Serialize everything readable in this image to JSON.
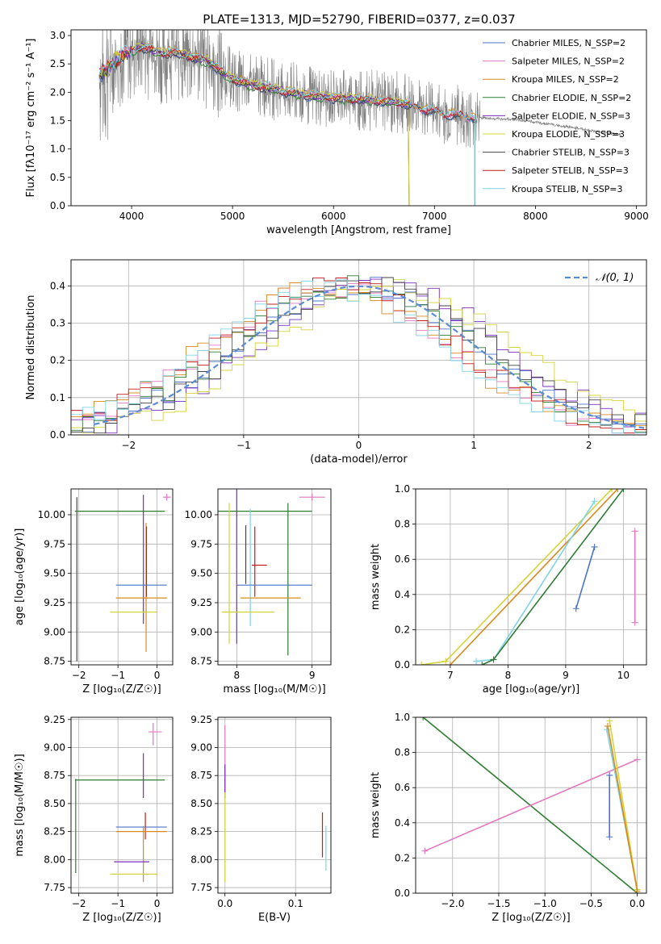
{
  "figure": {
    "title": "PLATE=1313, MJD=52790, FIBERID=0377, z=0.037"
  },
  "colors": {
    "models": [
      "#4c72c9",
      "#e377c2",
      "#d98a1e",
      "#2e7d32",
      "#7b2fbf",
      "#d4d43a",
      "#444444",
      "#c21d1d",
      "#7fd3e6"
    ],
    "spectrum": "#808080"
  },
  "chart_data": [
    {
      "id": "spectrum",
      "type": "line",
      "title": "PLATE=1313, MJD=52790, FIBERID=0377, z=0.037",
      "xlabel": "wavelength [Angstrom, rest frame]",
      "ylabel": "Flux [fλ10⁻¹⁷ erg cm⁻² s⁻¹ A⁻¹]",
      "xlim": [
        3400,
        9100
      ],
      "ylim": [
        0,
        3.1
      ],
      "xticks": [
        "4000",
        "5000",
        "6000",
        "7000",
        "8000",
        "9000"
      ],
      "yticks": [
        "0.0",
        "0.5",
        "1.0",
        "1.5",
        "2.0",
        "2.5",
        "3.0"
      ],
      "grid": false,
      "legend_position": "top-right",
      "legend": [
        "Chabrier MILES, N_SSP=2",
        "Salpeter MILES, N_SSP=2",
        "Kroupa MILES, N_SSP=2",
        "Chabrier ELODIE, N_SSP=2",
        "Salpeter ELODIE, N_SSP=3",
        "Kroupa ELODIE, N_SSP=3",
        "Chabrier STELIB, N_SSP=3",
        "Salpeter STELIB, N_SSP=3",
        "Kroupa STELIB, N_SSP=3"
      ],
      "continuum": {
        "x": [
          3680,
          3750,
          3800,
          3900,
          4000,
          4100,
          4200,
          4300,
          4400,
          4500,
          4600,
          4700,
          4800,
          4900,
          5000,
          5100,
          5200,
          5300,
          5400,
          5500,
          5600,
          5700,
          5800,
          5900,
          6000,
          6100,
          6200,
          6300,
          6400,
          6500,
          6600,
          6700,
          6800,
          6900,
          7000,
          7100,
          7200,
          7300,
          7400,
          7500,
          7600,
          7700,
          7800,
          7900,
          8000,
          8100,
          8200,
          8300,
          8400,
          8500,
          8600,
          8700,
          8800,
          8850
        ],
        "y": [
          2.32,
          2.4,
          2.5,
          2.65,
          2.73,
          2.8,
          2.75,
          2.68,
          2.72,
          2.66,
          2.62,
          2.58,
          2.5,
          2.35,
          2.23,
          2.18,
          2.12,
          2.1,
          2.06,
          2.02,
          1.99,
          1.96,
          1.94,
          1.92,
          1.9,
          1.89,
          1.88,
          1.87,
          1.86,
          1.84,
          1.83,
          1.8,
          1.75,
          1.7,
          1.66,
          1.62,
          1.6,
          1.58,
          1.56,
          1.55,
          1.53,
          1.53,
          1.52,
          1.5,
          1.47,
          1.45,
          1.42,
          1.4,
          1.37,
          1.34,
          1.31,
          1.28,
          1.26,
          1.25
        ]
      },
      "model_end_x": [
        7400,
        7400,
        7400,
        6750,
        6750,
        6750,
        7400,
        7400,
        7400
      ]
    },
    {
      "id": "residuals",
      "type": "line",
      "xlabel": "(data-model)/error",
      "ylabel": "Normed distribution",
      "xlim": [
        -2.5,
        2.5
      ],
      "ylim": [
        0,
        0.47
      ],
      "xticks": [
        "−2",
        "−1",
        "0",
        "1",
        "2"
      ],
      "yticks": [
        "0.0",
        "0.1",
        "0.2",
        "0.3",
        "0.4"
      ],
      "grid": true,
      "legend_position": "top-right",
      "legend": [
        "𝒩(0, 1)"
      ],
      "reference_curve": "normal(0,1)",
      "histogram_bins": {
        "start": -2.5,
        "width": 0.1,
        "count": 50
      }
    },
    {
      "id": "age-vs-Z",
      "type": "scatter",
      "xlabel": "Z [log₁₀(Z/Z☉)]",
      "ylabel": "age  [log₁₀(age/yr)]",
      "xlim": [
        -2.2,
        0.4
      ],
      "ylim": [
        8.72,
        10.22
      ],
      "xticks": [
        "−2",
        "−1",
        "0"
      ],
      "yticks": [
        "8.75",
        "9.00",
        "9.25",
        "9.50",
        "9.75",
        "10.00"
      ],
      "grid": true,
      "errorbars": [
        {
          "x": 0.25,
          "xerr": 0.1,
          "y": 10.15,
          "yerr": 0.03,
          "c": 1
        },
        {
          "x": -2.05,
          "xerr": 0.0,
          "y": 9.45,
          "yerr": 0.7,
          "c": 6
        },
        {
          "x": -0.95,
          "xerr": 1.15,
          "y": 10.03,
          "yerr": 0.0,
          "c": 3
        },
        {
          "x": -0.35,
          "xerr": 0.0,
          "y": 9.62,
          "yerr": 0.55,
          "c": 4
        },
        {
          "x": -0.28,
          "xerr": 0.0,
          "y": 9.38,
          "yerr": 0.55,
          "c": 2
        },
        {
          "x": -0.27,
          "xerr": 0.0,
          "y": 9.6,
          "yerr": 0.3,
          "c": 7
        },
        {
          "x": -0.2,
          "xerr": 0.0,
          "y": 9.57,
          "yerr": 0.0,
          "c": 8
        },
        {
          "x": -0.4,
          "xerr": 0.65,
          "y": 9.4,
          "yerr": 0.0,
          "c": 0
        },
        {
          "x": -0.4,
          "xerr": 0.65,
          "y": 9.29,
          "yerr": 0.0,
          "c": 2
        },
        {
          "x": -0.6,
          "xerr": 0.6,
          "y": 9.17,
          "yerr": 0.0,
          "c": 5
        }
      ]
    },
    {
      "id": "age-vs-mass",
      "type": "scatter",
      "xlabel": "mass [log₁₀(M/M☉)]",
      "ylabel": "",
      "xlim": [
        7.75,
        9.25
      ],
      "ylim": [
        8.72,
        10.22
      ],
      "xticks": [
        "8",
        "9"
      ],
      "yticks": [
        "8.75",
        "9.00",
        "9.25",
        "9.50",
        "9.75",
        "10.00"
      ],
      "grid": true,
      "errorbars": [
        {
          "x": 9.0,
          "xerr": 0.17,
          "y": 10.15,
          "yerr": 0.03,
          "c": 1
        },
        {
          "x": 8.35,
          "xerr": 0.65,
          "y": 10.03,
          "yerr": 0.0,
          "c": 3
        },
        {
          "x": 8.68,
          "xerr": 0.0,
          "y": 9.45,
          "yerr": 0.65,
          "c": 3
        },
        {
          "x": 8.0,
          "xerr": 0.0,
          "y": 9.6,
          "yerr": 0.7,
          "c": 4
        },
        {
          "x": 7.9,
          "xerr": 0.0,
          "y": 9.5,
          "yerr": 0.6,
          "c": 5
        },
        {
          "x": 8.12,
          "xerr": 0.0,
          "y": 9.66,
          "yerr": 0.25,
          "c": 6
        },
        {
          "x": 8.24,
          "xerr": 0.0,
          "y": 9.6,
          "yerr": 0.3,
          "c": 7
        },
        {
          "x": 8.18,
          "xerr": 0.0,
          "y": 9.55,
          "yerr": 0.5,
          "c": 8
        },
        {
          "x": 8.5,
          "xerr": 0.5,
          "y": 9.4,
          "yerr": 0.0,
          "c": 0
        },
        {
          "x": 8.45,
          "xerr": 0.4,
          "y": 9.29,
          "yerr": 0.0,
          "c": 2
        },
        {
          "x": 8.15,
          "xerr": 0.35,
          "y": 9.17,
          "yerr": 0.0,
          "c": 5
        },
        {
          "x": 8.3,
          "xerr": 0.1,
          "y": 9.57,
          "yerr": 0.0,
          "c": 7
        }
      ]
    },
    {
      "id": "massweight-vs-age",
      "type": "line",
      "xlabel": "age  [log₁₀(age/yr)]",
      "ylabel": "mass weight",
      "xlim": [
        6.4,
        10.4
      ],
      "ylim": [
        0,
        1
      ],
      "xticks": [
        "7",
        "8",
        "9",
        "10"
      ],
      "yticks": [
        "0.0",
        "0.2",
        "0.4",
        "0.6",
        "0.8",
        "1.0"
      ],
      "grid": true,
      "series": [
        {
          "c": 0,
          "x": [
            9.18,
            9.5
          ],
          "y": [
            0.32,
            0.67
          ]
        },
        {
          "c": 1,
          "x": [
            10.2,
            10.2
          ],
          "y": [
            0.24,
            0.76
          ]
        },
        {
          "c": 2,
          "x": [
            7.0,
            9.9
          ],
          "y": [
            0.0,
            1.0
          ]
        },
        {
          "c": 5,
          "x": [
            6.5,
            6.92,
            9.8
          ],
          "y": [
            0.0,
            0.02,
            1.0
          ]
        },
        {
          "c": 8,
          "x": [
            7.45,
            7.75,
            9.5
          ],
          "y": [
            0.02,
            0.03,
            0.93
          ]
        },
        {
          "c": 3,
          "x": [
            7.55,
            7.75,
            10.0
          ],
          "y": [
            0.0,
            0.03,
            1.0
          ]
        }
      ]
    },
    {
      "id": "mass-vs-Z",
      "type": "scatter",
      "xlabel": "Z [log₁₀(Z/Z☉)]",
      "ylabel": "mass [log₁₀(M/M☉)]",
      "xlim": [
        -2.2,
        0.4
      ],
      "ylim": [
        7.7,
        9.27
      ],
      "xticks": [
        "−2",
        "−1",
        "0"
      ],
      "yticks": [
        "7.75",
        "8.00",
        "8.25",
        "8.50",
        "8.75",
        "9.00",
        "9.25"
      ],
      "grid": true,
      "errorbars": [
        {
          "x": -0.1,
          "xerr": 0.0,
          "y": 9.12,
          "yerr": 0.1,
          "c": 1
        },
        {
          "x": -0.05,
          "xerr": 0.17,
          "y": 9.14,
          "yerr": 0.0,
          "c": 1
        },
        {
          "x": -0.95,
          "xerr": 1.15,
          "y": 8.71,
          "yerr": 0.0,
          "c": 3
        },
        {
          "x": -2.08,
          "xerr": 0.0,
          "y": 8.3,
          "yerr": 0.42,
          "c": 3
        },
        {
          "x": -0.35,
          "xerr": 0.0,
          "y": 8.75,
          "yerr": 0.2,
          "c": 4
        },
        {
          "x": -0.3,
          "xerr": 0.0,
          "y": 8.3,
          "yerr": 0.12,
          "c": 7
        },
        {
          "x": -0.4,
          "xerr": 0.65,
          "y": 8.29,
          "yerr": 0.0,
          "c": 0
        },
        {
          "x": -0.4,
          "xerr": 0.65,
          "y": 8.25,
          "yerr": 0.0,
          "c": 2
        },
        {
          "x": -0.35,
          "xerr": 0.0,
          "y": 8.05,
          "yerr": 0.25,
          "c": 2
        },
        {
          "x": -0.2,
          "xerr": 0.0,
          "y": 8.12,
          "yerr": 0.0,
          "c": 6
        },
        {
          "x": -0.65,
          "xerr": 0.45,
          "y": 7.98,
          "yerr": 0.0,
          "c": 4
        },
        {
          "x": -0.6,
          "xerr": 0.6,
          "y": 7.87,
          "yerr": 0.0,
          "c": 5
        }
      ]
    },
    {
      "id": "mass-vs-EBV",
      "type": "scatter",
      "xlabel": "E(B-V)",
      "ylabel": "",
      "xlim": [
        -0.01,
        0.15
      ],
      "ylim": [
        7.7,
        9.27
      ],
      "xticks": [
        "0.0",
        "0.1"
      ],
      "yticks": [
        "7.75",
        "8.00",
        "8.25",
        "8.50",
        "8.75",
        "9.00",
        "9.25"
      ],
      "grid": true,
      "errorbars": [
        {
          "x": 0.0,
          "xerr": 0.0,
          "y": 8.9,
          "yerr": 0.3,
          "c": 1
        },
        {
          "x": 0.0,
          "xerr": 0.0,
          "y": 8.7,
          "yerr": 0.15,
          "c": 4
        },
        {
          "x": 0.0,
          "xerr": 0.0,
          "y": 8.2,
          "yerr": 0.4,
          "c": 5
        },
        {
          "x": 0.138,
          "xerr": 0.0,
          "y": 8.22,
          "yerr": 0.2,
          "c": 7
        },
        {
          "x": 0.143,
          "xerr": 0.0,
          "y": 8.1,
          "yerr": 0.2,
          "c": 8
        }
      ]
    },
    {
      "id": "massweight-vs-Z",
      "type": "line",
      "xlabel": "Z [log₁₀(Z/Z☉)]",
      "ylabel": "mass weight",
      "xlim": [
        -2.4,
        0.1
      ],
      "ylim": [
        0,
        1
      ],
      "xticks": [
        "−2.0",
        "−1.5",
        "−1.0",
        "−0.5",
        "0.0"
      ],
      "yticks": [
        "0.0",
        "0.2",
        "0.4",
        "0.6",
        "0.8",
        "1.0"
      ],
      "grid": true,
      "series": [
        {
          "c": 3,
          "x": [
            -2.32,
            0.0
          ],
          "y": [
            1.0,
            0.0
          ]
        },
        {
          "c": 1,
          "x": [
            -2.3,
            0.0
          ],
          "y": [
            0.24,
            0.76
          ]
        },
        {
          "c": 0,
          "x": [
            -0.3,
            -0.3
          ],
          "y": [
            0.32,
            0.67
          ]
        },
        {
          "c": 8,
          "x": [
            -0.33,
            0.0
          ],
          "y": [
            0.93,
            0.02
          ]
        },
        {
          "c": 5,
          "x": [
            -0.3,
            0.0
          ],
          "y": [
            0.98,
            0.02
          ]
        },
        {
          "c": 2,
          "x": [
            -0.32,
            0.0
          ],
          "y": [
            0.95,
            0.01
          ]
        }
      ]
    }
  ]
}
